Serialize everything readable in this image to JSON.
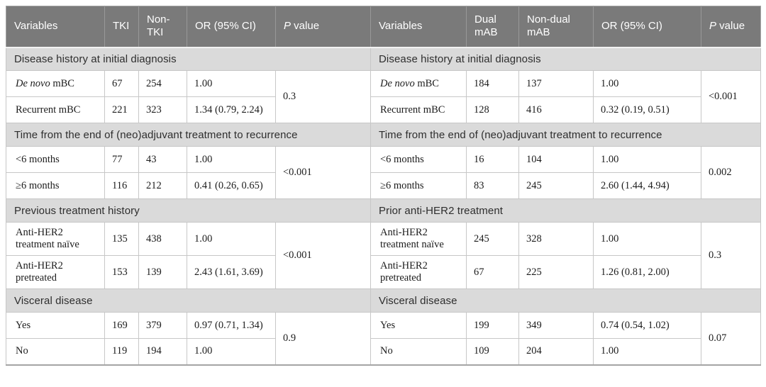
{
  "colors": {
    "header_bg": "#7a7a7a",
    "header_text": "#ffffff",
    "section_bg": "#dadada",
    "section_text": "#2e2e2e",
    "body_text": "#1c1c1c",
    "cell_border": "#c7c7c7",
    "outer_border": "#a5a5a5"
  },
  "tables": [
    {
      "name": "tki-vs-non-tki",
      "headers": {
        "variables": "Variables",
        "group1": "TKI",
        "group2": "Non-TKI",
        "or": "OR (95% CI)",
        "p_italic": "P",
        "p_rest": " value"
      },
      "sections": [
        {
          "title": "Disease history at initial diagnosis",
          "p_value": "0.3",
          "rows": [
            {
              "label_italic": "De novo",
              "label": " mBC",
              "g1": "67",
              "g2": "254",
              "or": "1.00"
            },
            {
              "label": "Recurrent mBC",
              "g1": "221",
              "g2": "323",
              "or": "1.34 (0.79, 2.24)"
            }
          ]
        },
        {
          "title": "Time from the end of (neo)adjuvant treatment to recurrence",
          "p_value": "<0.001",
          "rows": [
            {
              "label": "<6 months",
              "g1": "77",
              "g2": "43",
              "or": "1.00"
            },
            {
              "label": "≥6 months",
              "g1": "116",
              "g2": "212",
              "or": "0.41 (0.26, 0.65)"
            }
          ]
        },
        {
          "title": "Previous treatment history",
          "p_value": "<0.001",
          "rows": [
            {
              "label": "Anti-HER2 treatment naïve",
              "g1": "135",
              "g2": "438",
              "or": "1.00"
            },
            {
              "label": "Anti-HER2 pretreated",
              "g1": "153",
              "g2": "139",
              "or": "2.43 (1.61, 3.69)"
            }
          ]
        },
        {
          "title": "Visceral disease",
          "p_value": "0.9",
          "rows": [
            {
              "label": "Yes",
              "g1": "169",
              "g2": "379",
              "or": "0.97 (0.71, 1.34)"
            },
            {
              "label": "No",
              "g1": "119",
              "g2": "194",
              "or": "1.00"
            }
          ]
        }
      ]
    },
    {
      "name": "dual-mab-vs-non-dual-mab",
      "headers": {
        "variables": "Variables",
        "group1": "Dual mAB",
        "group2": "Non-dual mAB",
        "or": "OR (95% CI)",
        "p_italic": "P",
        "p_rest": " value"
      },
      "sections": [
        {
          "title": "Disease history at initial diagnosis",
          "p_value": "<0.001",
          "rows": [
            {
              "label_italic": "De novo",
              "label": " mBC",
              "g1": "184",
              "g2": "137",
              "or": "1.00"
            },
            {
              "label": "Recurrent mBC",
              "g1": "128",
              "g2": "416",
              "or": "0.32 (0.19, 0.51)"
            }
          ]
        },
        {
          "title": "Time from the end of (neo)adjuvant treatment to recurrence",
          "p_value": "0.002",
          "rows": [
            {
              "label": "<6 months",
              "g1": "16",
              "g2": "104",
              "or": "1.00"
            },
            {
              "label": "≥6 months",
              "g1": "83",
              "g2": "245",
              "or": "2.60 (1.44, 4.94)"
            }
          ]
        },
        {
          "title": "Prior anti-HER2 treatment",
          "p_value": "0.3",
          "rows": [
            {
              "label": "Anti-HER2 treatment naïve",
              "g1": "245",
              "g2": "328",
              "or": "1.00"
            },
            {
              "label": "Anti-HER2 pretreated",
              "g1": "67",
              "g2": "225",
              "or": "1.26 (0.81, 2.00)"
            }
          ]
        },
        {
          "title": "Visceral disease",
          "p_value": "0.07",
          "rows": [
            {
              "label": "Yes",
              "g1": "199",
              "g2": "349",
              "or": "0.74 (0.54, 1.02)"
            },
            {
              "label": "No",
              "g1": "109",
              "g2": "204",
              "or": "1.00"
            }
          ]
        }
      ]
    }
  ]
}
